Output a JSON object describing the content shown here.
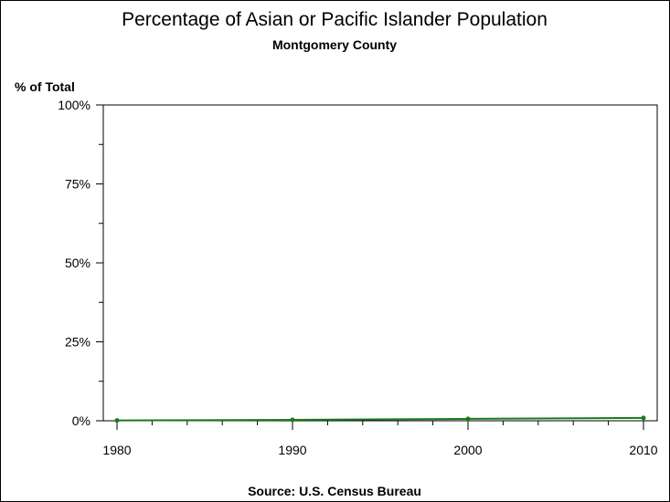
{
  "chart_data": {
    "type": "line",
    "title": "Percentage of Asian or Pacific Islander Population",
    "subtitle": "Montgomery County",
    "ylabel": "% of Total",
    "xlabel": "",
    "source": "Source: U.S. Census Bureau",
    "x": [
      1980,
      1990,
      2000,
      2010
    ],
    "series": [
      {
        "values": [
          0.1,
          0.3,
          0.6,
          0.9
        ],
        "color": "#1a7a1a"
      }
    ],
    "xlim": [
      1980,
      2010
    ],
    "ylim": [
      0,
      100
    ],
    "xticks": [
      {
        "value": 1980,
        "label": "1980"
      },
      {
        "value": 1990,
        "label": "1990"
      },
      {
        "value": 2000,
        "label": "2000"
      },
      {
        "value": 2010,
        "label": "2010"
      }
    ],
    "yticks": [
      {
        "value": 0,
        "label": "0%"
      },
      {
        "value": 25,
        "label": "25%"
      },
      {
        "value": 50,
        "label": "50%"
      },
      {
        "value": 75,
        "label": "75%"
      },
      {
        "value": 100,
        "label": "100%"
      }
    ],
    "x_minor_step": 2,
    "y_minor_step": 12.5,
    "grid": false,
    "legend": "none"
  }
}
